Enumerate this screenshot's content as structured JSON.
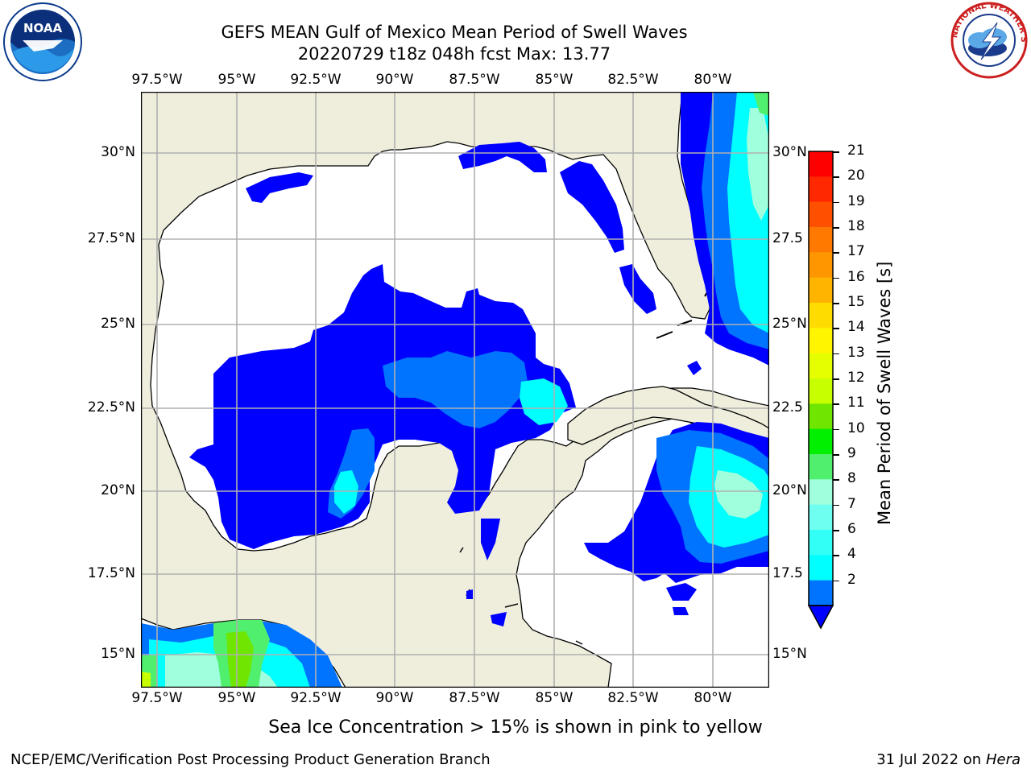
{
  "header": {
    "title_line1": "GEFS MEAN Gulf of Mexico Mean Period of Swell Waves",
    "title_line2": "20220729 t18z 048h fcst   Max: 13.77"
  },
  "logos": {
    "left": {
      "icon": "noaa-logo-icon",
      "text": "NOAA"
    },
    "right": {
      "icon": "nws-logo-icon",
      "text": "NATIONAL WEATHER SERVICE"
    }
  },
  "map": {
    "lon_labels": [
      "97.5°W",
      "95°W",
      "92.5°W",
      "90°W",
      "87.5°W",
      "85°W",
      "82.5°W",
      "80°W"
    ],
    "lat_labels_left": [
      "30°N",
      "27.5°N",
      "25°N",
      "22.5°N",
      "20°N",
      "17.5°N",
      "15°N"
    ],
    "lat_labels_right": [
      "30°N",
      "27.5",
      "25°N",
      "22.5",
      "20°N",
      "17.5",
      "15°N"
    ],
    "colors": {
      "land": "#efeedd",
      "ocean": "#ffffff",
      "gridline": "#b0b0b0",
      "coast": "#000000"
    }
  },
  "colorbar": {
    "label": "Mean Period of Swell Waves [s]",
    "ticks": [
      "21",
      "20",
      "19",
      "18",
      "17",
      "16",
      "15",
      "14",
      "13",
      "12",
      "11",
      "10",
      "9",
      "8",
      "7",
      "6",
      "4",
      "2"
    ],
    "colors": [
      "#ff0000",
      "#ff2800",
      "#ff5000",
      "#ff7800",
      "#ff9600",
      "#ffb400",
      "#ffdc00",
      "#fff500",
      "#e6ff00",
      "#c8ff00",
      "#6ee600",
      "#00f000",
      "#50f06e",
      "#a0ffdc",
      "#6efff0",
      "#32fff5",
      "#00ffff",
      "#0073ff"
    ],
    "extend_color": "#0000ff"
  },
  "footer": {
    "note": "Sea Ice Concentration > 15% is shown in pink to yellow",
    "left": "NCEP/EMC/Verification Post Processing Product Generation Branch",
    "date": "31 Jul 2022 on ",
    "machine": "Hera"
  }
}
